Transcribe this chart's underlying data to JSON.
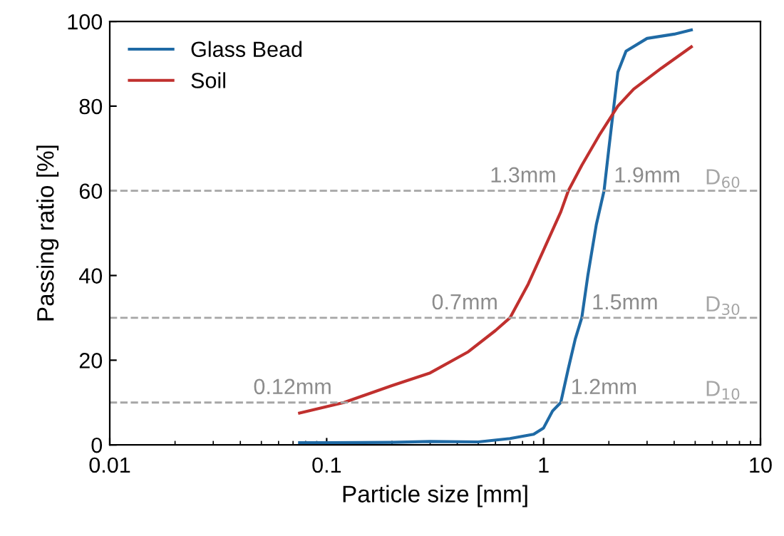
{
  "chart_data": {
    "type": "line",
    "xlabel": "Particle size [mm]",
    "ylabel": "Passing ratio [%]",
    "log": "x",
    "xlim": [
      0.01,
      10
    ],
    "xticks": [
      0.01,
      0.1,
      1,
      10
    ],
    "ylim": [
      0,
      100
    ],
    "yticks": [
      0,
      20,
      40,
      60,
      80,
      100
    ],
    "grid": false,
    "legend": "top left",
    "line_style": "solid",
    "marker": "none",
    "series": [
      {
        "name": "Glass Bead",
        "color": "#1f6aa5",
        "x": [
          0.075,
          0.1,
          0.2,
          0.3,
          0.5,
          0.7,
          0.9,
          1.0,
          1.1,
          1.2,
          1.3,
          1.4,
          1.5,
          1.6,
          1.75,
          1.9,
          2.0,
          2.2,
          2.4,
          3,
          4,
          4.8
        ],
        "values": [
          0.5,
          0.5,
          0.6,
          0.8,
          0.7,
          1.5,
          2.5,
          4,
          8,
          10,
          18,
          25,
          30,
          40,
          52,
          60,
          70,
          88,
          93,
          96,
          97,
          98
        ]
      },
      {
        "name": "Soil",
        "color": "#c0302e",
        "x": [
          0.075,
          0.12,
          0.2,
          0.3,
          0.45,
          0.6,
          0.7,
          0.85,
          1.0,
          1.2,
          1.3,
          1.5,
          1.8,
          2.2,
          2.6,
          3.5,
          4.8
        ],
        "values": [
          7.5,
          10,
          14,
          17,
          22,
          27,
          30,
          38,
          46,
          55,
          60,
          66,
          73,
          80,
          84,
          89,
          94
        ]
      }
    ],
    "ref_lines": [
      {
        "axis": "y",
        "value": 60,
        "label": "D$_{60}$",
        "color": "#a6a6a6",
        "line_style": "dashed"
      },
      {
        "axis": "y",
        "value": 30,
        "label": "D$_{30}$",
        "color": "#a6a6a6",
        "line_style": "dashed"
      },
      {
        "axis": "y",
        "value": 10,
        "label": "D$_{10}$",
        "color": "#a6a6a6",
        "line_style": "dashed"
      }
    ],
    "annotations": [
      {
        "text": "1.3mm",
        "x": 1.3,
        "y": 60
      },
      {
        "text": "1.9mm",
        "x": 1.9,
        "y": 60
      },
      {
        "text": "0.7mm",
        "x": 0.7,
        "y": 30
      },
      {
        "text": "1.5mm",
        "x": 1.5,
        "y": 30
      },
      {
        "text": "0.12mm",
        "x": 0.12,
        "y": 10
      },
      {
        "text": "1.2mm",
        "x": 1.2,
        "y": 10
      }
    ]
  }
}
